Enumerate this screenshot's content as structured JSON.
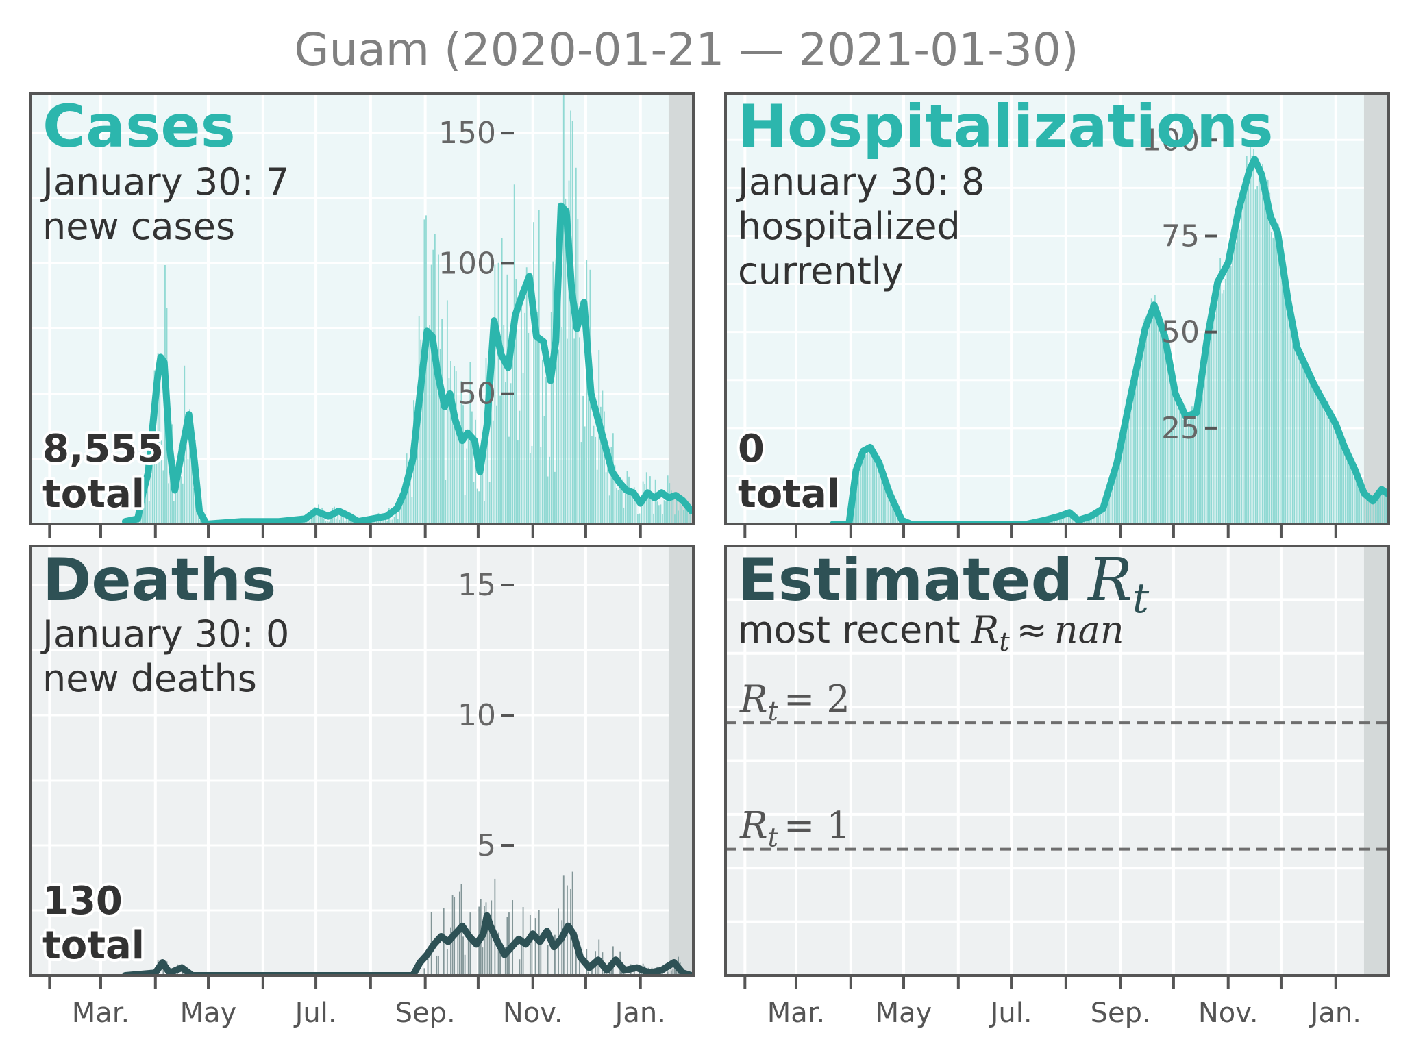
{
  "figure": {
    "title": "Guam (2020-01-21 — 2021-01-30)"
  },
  "colors": {
    "teal": "#2cb6ad",
    "teal_bar": "#7fd3cc",
    "teal_bg": "#edf7f8",
    "dark": "#2e5155",
    "dark_bar": "#6e8587",
    "gray_bg": "#eef1f2",
    "shade": "#d4d9d9",
    "axis": "#555555"
  },
  "x_axis": {
    "ticks": [
      "Mar.",
      "May",
      "Jul.",
      "Sep.",
      "Nov.",
      "Jan."
    ]
  },
  "panels": {
    "cases": {
      "title": "Cases",
      "line1": "January 30: 7",
      "line2": "new cases",
      "total_value": "8,555",
      "total_label": "total",
      "yticks": [
        "50",
        "100",
        "150"
      ]
    },
    "hosp": {
      "title": "Hospitalizations",
      "line1": "January 30: 8",
      "line2": "hospitalized",
      "line3": "currently",
      "total_value": "0",
      "total_label": "total",
      "yticks": [
        "25",
        "50",
        "75",
        "100"
      ]
    },
    "deaths": {
      "title": "Deaths",
      "line1": "January 30: 0",
      "line2": "new deaths",
      "total_value": "130",
      "total_label": "total",
      "yticks": [
        "5",
        "10",
        "15"
      ]
    },
    "rt": {
      "title_word": "Estimated",
      "title_sym": "R",
      "title_sub": "t",
      "sub_prefix": "most recent",
      "sub_sym": "R",
      "sub_sub": "t",
      "sub_approx": "≈",
      "sub_value": "nan",
      "ref2_sym": "R",
      "ref2_sub": "t",
      "ref2_eq": "= 2",
      "ref1_sym": "R",
      "ref1_sub": "t",
      "ref1_eq": "= 1"
    }
  },
  "chart_data": [
    {
      "type": "bar",
      "panel": "cases",
      "x_unit": "date",
      "x_range": [
        "2020-01-21",
        "2021-01-30"
      ],
      "ylim": [
        0,
        165
      ],
      "smoothed_line": [
        [
          "2020-03-15",
          1
        ],
        [
          "2020-03-22",
          2
        ],
        [
          "2020-03-25",
          12
        ],
        [
          "2020-03-28",
          20
        ],
        [
          "2020-04-02",
          55
        ],
        [
          "2020-04-04",
          64
        ],
        [
          "2020-04-06",
          62
        ],
        [
          "2020-04-09",
          30
        ],
        [
          "2020-04-12",
          13
        ],
        [
          "2020-04-16",
          28
        ],
        [
          "2020-04-20",
          42
        ],
        [
          "2020-04-23",
          25
        ],
        [
          "2020-04-26",
          5
        ],
        [
          "2020-04-30",
          0
        ],
        [
          "2020-05-20",
          1
        ],
        [
          "2020-06-10",
          1
        ],
        [
          "2020-06-25",
          2
        ],
        [
          "2020-07-01",
          5
        ],
        [
          "2020-07-08",
          3
        ],
        [
          "2020-07-14",
          5
        ],
        [
          "2020-07-20",
          3
        ],
        [
          "2020-07-25",
          1
        ],
        [
          "2020-08-02",
          2
        ],
        [
          "2020-08-10",
          3
        ],
        [
          "2020-08-16",
          6
        ],
        [
          "2020-08-20",
          12
        ],
        [
          "2020-08-25",
          25
        ],
        [
          "2020-08-29",
          50
        ],
        [
          "2020-09-02",
          74
        ],
        [
          "2020-09-05",
          72
        ],
        [
          "2020-09-08",
          58
        ],
        [
          "2020-09-12",
          45
        ],
        [
          "2020-09-15",
          50
        ],
        [
          "2020-09-18",
          40
        ],
        [
          "2020-09-22",
          32
        ],
        [
          "2020-09-25",
          35
        ],
        [
          "2020-09-29",
          32
        ],
        [
          "2020-10-02",
          20
        ],
        [
          "2020-10-06",
          38
        ],
        [
          "2020-10-10",
          78
        ],
        [
          "2020-10-14",
          65
        ],
        [
          "2020-10-18",
          60
        ],
        [
          "2020-10-22",
          80
        ],
        [
          "2020-10-26",
          88
        ],
        [
          "2020-10-30",
          95
        ],
        [
          "2020-11-03",
          72
        ],
        [
          "2020-11-07",
          70
        ],
        [
          "2020-11-11",
          55
        ],
        [
          "2020-11-14",
          70
        ],
        [
          "2020-11-17",
          122
        ],
        [
          "2020-11-20",
          120
        ],
        [
          "2020-11-23",
          90
        ],
        [
          "2020-11-26",
          75
        ],
        [
          "2020-11-30",
          85
        ],
        [
          "2020-12-04",
          50
        ],
        [
          "2020-12-08",
          40
        ],
        [
          "2020-12-12",
          30
        ],
        [
          "2020-12-16",
          20
        ],
        [
          "2020-12-20",
          16
        ],
        [
          "2020-12-24",
          13
        ],
        [
          "2020-12-28",
          12
        ],
        [
          "2021-01-01",
          8
        ],
        [
          "2021-01-05",
          12
        ],
        [
          "2021-01-09",
          10
        ],
        [
          "2021-01-13",
          12
        ],
        [
          "2021-01-17",
          10
        ],
        [
          "2021-01-21",
          11
        ],
        [
          "2021-01-25",
          9
        ],
        [
          "2021-01-30",
          5
        ]
      ],
      "shaded_recent_days": 14
    },
    {
      "type": "bar",
      "panel": "hosp",
      "x_unit": "date",
      "x_range": [
        "2020-01-21",
        "2021-01-30"
      ],
      "ylim": [
        0,
        112
      ],
      "smoothed_line": [
        [
          "2020-03-22",
          0
        ],
        [
          "2020-03-31",
          0
        ],
        [
          "2020-04-04",
          14
        ],
        [
          "2020-04-08",
          19
        ],
        [
          "2020-04-12",
          20
        ],
        [
          "2020-04-17",
          16
        ],
        [
          "2020-04-23",
          8
        ],
        [
          "2020-04-30",
          1
        ],
        [
          "2020-05-05",
          0
        ],
        [
          "2020-07-10",
          0
        ],
        [
          "2020-07-20",
          1
        ],
        [
          "2020-07-28",
          2
        ],
        [
          "2020-08-03",
          3
        ],
        [
          "2020-08-08",
          1
        ],
        [
          "2020-08-15",
          2
        ],
        [
          "2020-08-22",
          4
        ],
        [
          "2020-08-30",
          16
        ],
        [
          "2020-09-07",
          34
        ],
        [
          "2020-09-15",
          51
        ],
        [
          "2020-09-20",
          57
        ],
        [
          "2020-09-26",
          49
        ],
        [
          "2020-10-02",
          34
        ],
        [
          "2020-10-08",
          28
        ],
        [
          "2020-10-14",
          29
        ],
        [
          "2020-10-20",
          48
        ],
        [
          "2020-10-26",
          63
        ],
        [
          "2020-11-01",
          68
        ],
        [
          "2020-11-07",
          82
        ],
        [
          "2020-11-13",
          92
        ],
        [
          "2020-11-16",
          95
        ],
        [
          "2020-11-20",
          91
        ],
        [
          "2020-11-25",
          80
        ],
        [
          "2020-11-29",
          76
        ],
        [
          "2020-12-05",
          58
        ],
        [
          "2020-12-10",
          46
        ],
        [
          "2020-12-15",
          41
        ],
        [
          "2020-12-20",
          36
        ],
        [
          "2020-12-26",
          31
        ],
        [
          "2021-01-01",
          26
        ],
        [
          "2021-01-06",
          20
        ],
        [
          "2021-01-12",
          14
        ],
        [
          "2021-01-17",
          8
        ],
        [
          "2021-01-22",
          6
        ],
        [
          "2021-01-27",
          9
        ],
        [
          "2021-01-30",
          8
        ]
      ],
      "shaded_recent_days": 14
    },
    {
      "type": "bar",
      "panel": "deaths",
      "x_unit": "date",
      "x_range": [
        "2020-01-21",
        "2021-01-30"
      ],
      "ylim": [
        0,
        16.5
      ],
      "smoothed_line": [
        [
          "2020-03-15",
          0
        ],
        [
          "2020-04-01",
          0.1
        ],
        [
          "2020-04-05",
          0.5
        ],
        [
          "2020-04-09",
          0.1
        ],
        [
          "2020-04-16",
          0.3
        ],
        [
          "2020-04-22",
          0
        ],
        [
          "2020-08-25",
          0
        ],
        [
          "2020-08-29",
          0.5
        ],
        [
          "2020-09-02",
          0.8
        ],
        [
          "2020-09-06",
          1.2
        ],
        [
          "2020-09-10",
          1.5
        ],
        [
          "2020-09-14",
          1.3
        ],
        [
          "2020-09-18",
          1.6
        ],
        [
          "2020-09-22",
          1.9
        ],
        [
          "2020-09-26",
          1.5
        ],
        [
          "2020-09-30",
          1.2
        ],
        [
          "2020-10-04",
          1.6
        ],
        [
          "2020-10-06",
          2.3
        ],
        [
          "2020-10-08",
          1.9
        ],
        [
          "2020-10-12",
          1.3
        ],
        [
          "2020-10-16",
          0.8
        ],
        [
          "2020-10-20",
          1.1
        ],
        [
          "2020-10-24",
          1.4
        ],
        [
          "2020-10-28",
          1.2
        ],
        [
          "2020-11-01",
          1.6
        ],
        [
          "2020-11-05",
          1.3
        ],
        [
          "2020-11-09",
          1.7
        ],
        [
          "2020-11-13",
          1.1
        ],
        [
          "2020-11-17",
          1.4
        ],
        [
          "2020-11-21",
          1.9
        ],
        [
          "2020-11-24",
          1.6
        ],
        [
          "2020-11-28",
          0.7
        ],
        [
          "2020-12-03",
          0.3
        ],
        [
          "2020-12-08",
          0.6
        ],
        [
          "2020-12-13",
          0.2
        ],
        [
          "2020-12-18",
          0.6
        ],
        [
          "2020-12-23",
          0.2
        ],
        [
          "2020-12-30",
          0.3
        ],
        [
          "2021-01-06",
          0.1
        ],
        [
          "2021-01-13",
          0.2
        ],
        [
          "2021-01-20",
          0.5
        ],
        [
          "2021-01-25",
          0.1
        ],
        [
          "2021-01-30",
          0
        ]
      ],
      "shaded_recent_days": 14
    },
    {
      "type": "line",
      "panel": "rt",
      "x_unit": "date",
      "x_range": [
        "2020-01-21",
        "2021-01-30"
      ],
      "ylim": [
        0,
        3.4
      ],
      "reference_lines": [
        2,
        1
      ],
      "series": [],
      "shaded_recent_days": 14
    }
  ]
}
